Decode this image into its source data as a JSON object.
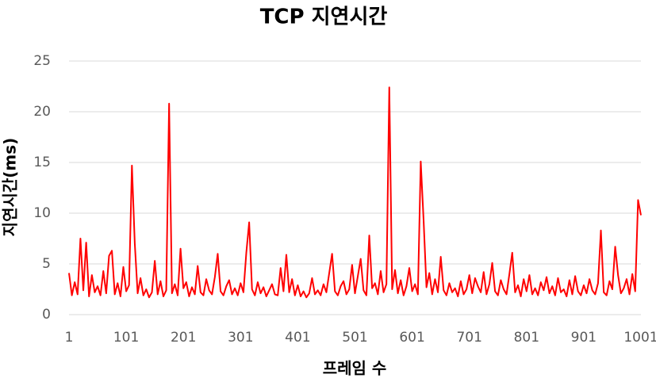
{
  "chart_data": {
    "type": "line",
    "title": "TCP 지연시간",
    "x_label": "프레임 수",
    "y_label": "지연시간(ms)",
    "color": "#ff0000",
    "x": [
      1,
      6,
      11,
      16,
      21,
      26,
      31,
      36,
      41,
      46,
      51,
      56,
      61,
      66,
      71,
      76,
      81,
      86,
      91,
      96,
      101,
      106,
      111,
      116,
      121,
      126,
      131,
      136,
      141,
      146,
      151,
      156,
      161,
      166,
      171,
      176,
      181,
      186,
      191,
      196,
      201,
      206,
      211,
      216,
      221,
      226,
      231,
      236,
      241,
      246,
      251,
      256,
      261,
      266,
      271,
      276,
      281,
      286,
      291,
      296,
      301,
      306,
      311,
      316,
      321,
      326,
      331,
      336,
      341,
      346,
      351,
      356,
      361,
      366,
      371,
      376,
      381,
      386,
      391,
      396,
      401,
      406,
      411,
      416,
      421,
      426,
      431,
      436,
      441,
      446,
      451,
      456,
      461,
      466,
      471,
      476,
      481,
      486,
      491,
      496,
      501,
      506,
      511,
      516,
      521,
      526,
      531,
      536,
      541,
      546,
      551,
      556,
      561,
      566,
      571,
      576,
      581,
      586,
      591,
      596,
      601,
      606,
      611,
      616,
      621,
      626,
      631,
      636,
      641,
      646,
      651,
      656,
      661,
      666,
      671,
      676,
      681,
      686,
      691,
      696,
      701,
      706,
      711,
      716,
      721,
      726,
      731,
      736,
      741,
      746,
      751,
      756,
      761,
      766,
      771,
      776,
      781,
      786,
      791,
      796,
      801,
      806,
      811,
      816,
      821,
      826,
      831,
      836,
      841,
      846,
      851,
      856,
      861,
      866,
      871,
      876,
      881,
      886,
      891,
      896,
      901,
      906,
      911,
      916,
      921,
      926,
      931,
      936,
      941,
      946,
      951,
      956,
      961,
      966,
      971,
      976,
      981,
      986,
      991,
      996,
      1001
    ],
    "values": [
      4.1,
      1.9,
      3.2,
      2.0,
      7.5,
      2.4,
      7.1,
      1.8,
      3.9,
      2.2,
      2.8,
      1.9,
      4.3,
      2.1,
      5.8,
      6.3,
      2.0,
      3.1,
      1.8,
      4.7,
      2.3,
      2.9,
      14.7,
      7.0,
      2.1,
      3.6,
      1.9,
      2.5,
      1.7,
      2.2,
      5.3,
      2.0,
      3.3,
      1.8,
      2.4,
      20.8,
      2.1,
      3.0,
      1.9,
      6.5,
      2.6,
      3.2,
      1.8,
      2.7,
      2.0,
      4.8,
      2.2,
      1.9,
      3.5,
      2.4,
      2.0,
      3.7,
      6.0,
      2.3,
      1.9,
      2.8,
      3.4,
      2.0,
      2.6,
      1.9,
      3.1,
      2.2,
      6.1,
      9.1,
      2.5,
      1.9,
      3.2,
      2.1,
      2.7,
      1.8,
      2.4,
      3.0,
      2.0,
      1.9,
      4.6,
      2.3,
      5.9,
      2.2,
      3.5,
      1.9,
      2.9,
      1.8,
      2.3,
      1.7,
      2.1,
      3.6,
      2.0,
      2.4,
      1.9,
      3.0,
      2.2,
      4.1,
      6.0,
      2.3,
      1.9,
      2.8,
      3.3,
      2.0,
      2.5,
      4.9,
      2.1,
      3.8,
      5.5,
      2.4,
      1.9,
      7.8,
      2.6,
      3.1,
      2.0,
      4.3,
      2.2,
      3.0,
      22.4,
      2.5,
      4.4,
      2.1,
      3.4,
      1.9,
      2.8,
      4.6,
      2.3,
      3.0,
      2.0,
      15.1,
      9.3,
      2.7,
      4.1,
      2.0,
      3.5,
      2.2,
      5.7,
      2.4,
      1.9,
      3.1,
      2.2,
      2.6,
      1.8,
      3.3,
      2.0,
      2.5,
      3.9,
      2.1,
      3.6,
      2.8,
      2.2,
      4.2,
      2.0,
      3.0,
      5.1,
      2.3,
      1.9,
      3.4,
      2.5,
      2.0,
      4.0,
      6.1,
      2.2,
      2.9,
      1.8,
      3.5,
      2.3,
      3.9,
      2.0,
      2.6,
      1.9,
      3.2,
      2.4,
      3.7,
      2.1,
      2.8,
      1.9,
      3.6,
      2.2,
      2.5,
      1.8,
      3.4,
      2.0,
      3.8,
      2.3,
      1.9,
      2.9,
      2.1,
      3.5,
      2.4,
      2.0,
      3.1,
      8.3,
      2.2,
      1.9,
      3.3,
      2.5,
      6.7,
      3.9,
      2.1,
      2.6,
      3.5,
      2.0,
      4.0,
      2.3,
      11.3,
      9.8
    ],
    "xlim": [
      1,
      1001
    ],
    "xticks": [
      1,
      101,
      201,
      301,
      401,
      501,
      601,
      701,
      801,
      901,
      1001
    ],
    "ylim": [
      0,
      25
    ],
    "yticks": [
      0,
      5,
      10,
      15,
      20,
      25
    ],
    "grid": true
  }
}
